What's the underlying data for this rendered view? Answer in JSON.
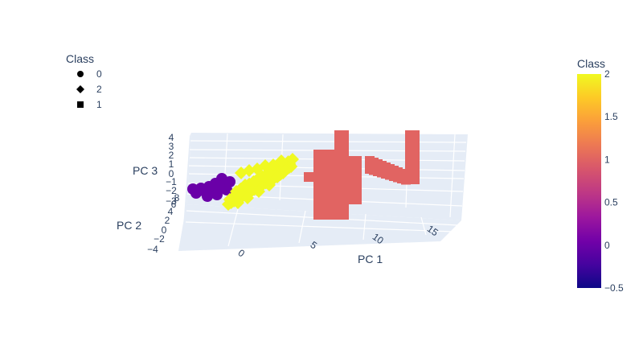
{
  "chart_data": {
    "type": "scatter3d",
    "axes": {
      "x": {
        "title": "PC 1",
        "ticks": [
          "0",
          "5",
          "10",
          "15"
        ]
      },
      "y": {
        "title": "PC 2",
        "ticks": [
          "−4",
          "−2",
          "0",
          "2",
          "4",
          "6",
          "8"
        ]
      },
      "z": {
        "title": "PC 3",
        "ticks": [
          "−3",
          "−2",
          "−1",
          "0",
          "1",
          "2",
          "3",
          "4"
        ]
      }
    },
    "legend": {
      "title": "Class",
      "placement": "top-left",
      "items": [
        {
          "label": "0",
          "symbol": "circle"
        },
        {
          "label": "2",
          "symbol": "diamond"
        },
        {
          "label": "1",
          "symbol": "square"
        }
      ]
    },
    "colorbar": {
      "title": "Class",
      "ticks": [
        "2",
        "1.5",
        "1",
        "0.5",
        "0",
        "−0.5"
      ],
      "range": [
        -0.5,
        2
      ],
      "colorscale": [
        "#0d0887",
        "#46039f",
        "#7201a8",
        "#9c179e",
        "#bd3786",
        "#d8576b",
        "#ed7953",
        "#fb9f3a",
        "#fdca26",
        "#f0f921"
      ]
    },
    "clusters": [
      {
        "class": 0,
        "color": "#6a00a8",
        "symbol": "circle",
        "pc1_range": [
          -3,
          0
        ],
        "pc2_approx": 0,
        "pc3_approx": -1
      },
      {
        "class": 2,
        "color": "#f0f921",
        "symbol": "diamond",
        "pc1_range": [
          0,
          5
        ],
        "pc2_approx": 0,
        "pc3_approx": 0
      },
      {
        "class": 1,
        "color": "#e16462",
        "symbol": "square",
        "pc1_range": [
          6,
          17
        ],
        "pc2_approx": 0,
        "pc3_approx": 1
      }
    ]
  }
}
